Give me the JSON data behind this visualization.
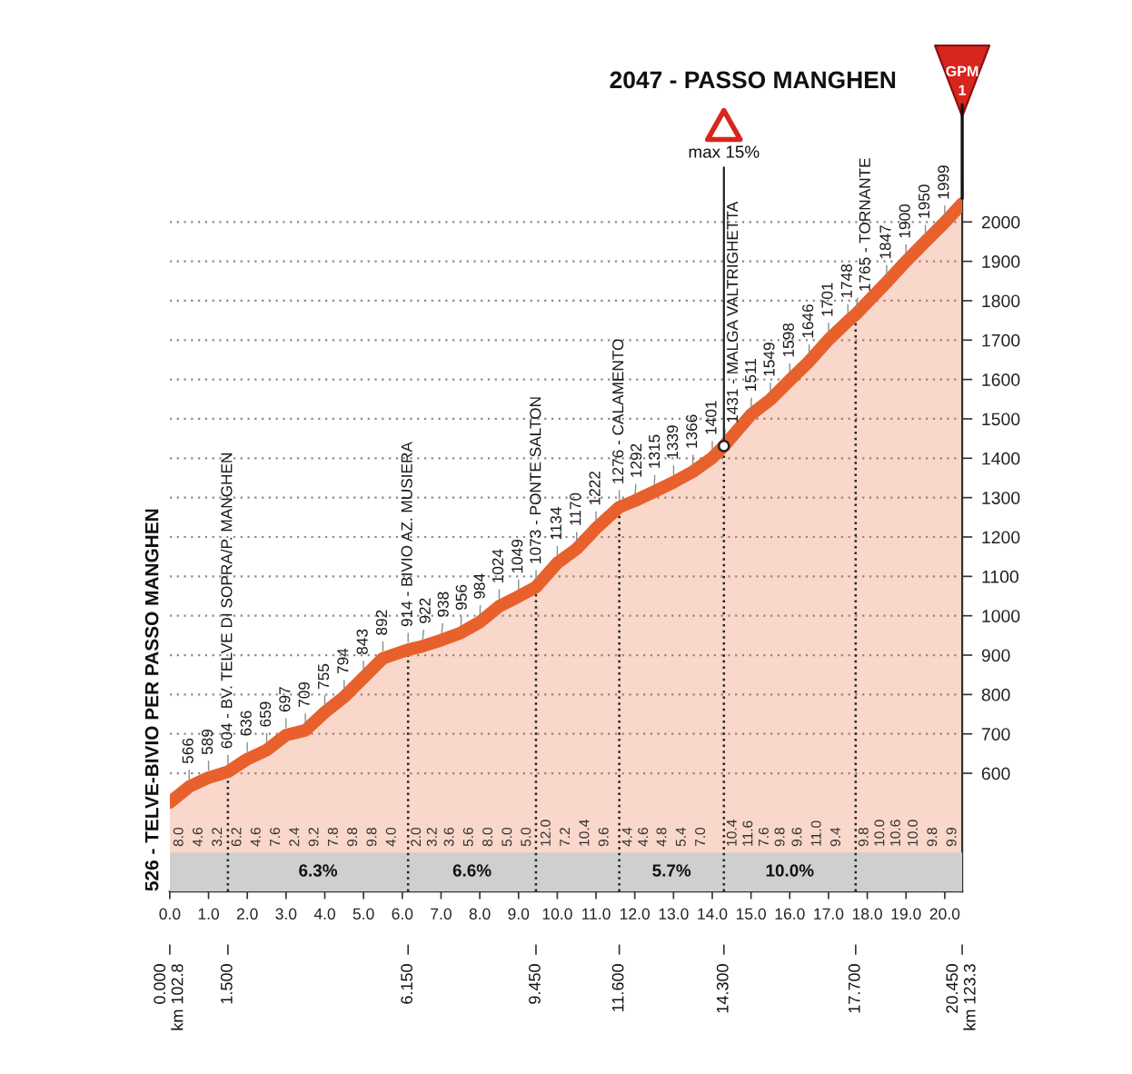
{
  "chart_data": {
    "type": "area",
    "title": "2047 - PASSO MANGHEN",
    "series": [
      {
        "color": "#e8602c",
        "x": [
          0,
          0.5,
          1.0,
          1.5,
          2.0,
          2.5,
          3.0,
          3.5,
          4.0,
          4.5,
          5.0,
          5.5,
          6.15,
          6.5,
          7.0,
          7.5,
          8.0,
          8.5,
          9.0,
          9.45,
          10.0,
          10.5,
          11.0,
          11.6,
          12.0,
          12.5,
          13.0,
          13.5,
          14.0,
          14.3,
          15.0,
          15.5,
          16.0,
          16.5,
          17.0,
          17.5,
          17.7,
          18.5,
          19.0,
          19.5,
          20.0,
          20.45
        ],
        "values": [
          526,
          566,
          589,
          604,
          636,
          659,
          697,
          709,
          755,
          794,
          843,
          892,
          914,
          922,
          938,
          956,
          984,
          1024,
          1049,
          1073,
          1134,
          1170,
          1222,
          1276,
          1292,
          1315,
          1339,
          1366,
          1401,
          1431,
          1511,
          1549,
          1598,
          1646,
          1701,
          1748,
          1765,
          1847,
          1900,
          1950,
          1999,
          2047
        ],
        "value_labels": [
          "526 - TELVE-BIVIO PER PASSO MANGHEN",
          "566",
          "589",
          "604 - BV. TELVE DI SOPRA/P. MANGHEN",
          "636",
          "659",
          "697",
          "709",
          "755",
          "794",
          "843",
          "892",
          "914 - BIVIO AZ. MUSIERA",
          "922",
          "938",
          "956",
          "984",
          "1024",
          "1049",
          "1073 - PONTE SALTON",
          "1134",
          "1170",
          "1222",
          "1276 - CALAMENTO",
          "1292",
          "1315",
          "1339",
          "1366",
          "1401",
          "1431 - MALGA VALTRIGHETTA",
          "1511",
          "1549",
          "1598",
          "1646",
          "1701",
          "1748",
          "1765 - TORNANTE",
          "1847",
          "1900",
          "1950",
          "1999",
          null
        ]
      }
    ],
    "xlim": [
      0,
      20.45
    ],
    "ylim": [
      300,
      2100
    ],
    "xticks": [
      {
        "value": 0,
        "label": "0.0"
      },
      {
        "value": 1,
        "label": "1.0"
      },
      {
        "value": 2,
        "label": "2.0"
      },
      {
        "value": 3,
        "label": "3.0"
      },
      {
        "value": 4,
        "label": "4.0"
      },
      {
        "value": 5,
        "label": "5.0"
      },
      {
        "value": 6,
        "label": "6.0"
      },
      {
        "value": 7,
        "label": "7.0"
      },
      {
        "value": 8,
        "label": "8.0"
      },
      {
        "value": 9,
        "label": "9.0"
      },
      {
        "value": 10,
        "label": "10.0"
      },
      {
        "value": 11,
        "label": "11.0"
      },
      {
        "value": 12,
        "label": "12.0"
      },
      {
        "value": 13,
        "label": "13.0"
      },
      {
        "value": 14,
        "label": "14.0"
      },
      {
        "value": 15,
        "label": "15.0"
      },
      {
        "value": 16,
        "label": "16.0"
      },
      {
        "value": 17,
        "label": "17.0"
      },
      {
        "value": 18,
        "label": "18.0"
      },
      {
        "value": 19,
        "label": "19.0"
      },
      {
        "value": 20,
        "label": "20.0"
      }
    ],
    "yticks": [
      600,
      700,
      800,
      900,
      1000,
      1100,
      1200,
      1300,
      1400,
      1500,
      1600,
      1700,
      1800,
      1900,
      2000
    ],
    "x2lim": [
      0,
      20.45
    ],
    "x2ticks": [
      {
        "value": 0,
        "label": "0.000\nkm 102.8"
      },
      {
        "value": 1.5,
        "label": "1.500"
      },
      {
        "value": 6.15,
        "label": "6.150"
      },
      {
        "value": 9.45,
        "label": "9.450"
      },
      {
        "value": 11.6,
        "label": "11.600"
      },
      {
        "value": 14.3,
        "label": "14.300"
      },
      {
        "value": 17.7,
        "label": "17.700"
      },
      {
        "value": 20.45,
        "label": "20.450\nkm 123.3"
      }
    ],
    "grid": "y",
    "bands": [
      {
        "axis": "x",
        "from": 0,
        "to": 6.15,
        "label": "6.3%",
        "color": "#cfcfcf"
      },
      {
        "axis": "x",
        "from": 6.15,
        "to": 11.6,
        "label": "6.6%",
        "color": "#cfcfcf"
      },
      {
        "axis": "x",
        "from": 11.6,
        "to": 14.3,
        "label": "5.7%",
        "color": "#cfcfcf"
      },
      {
        "axis": "x",
        "from": 14.3,
        "to": 20.45,
        "label": "10.0%",
        "color": "#cfcfcf"
      }
    ],
    "ref_lines": [
      {
        "axis": "x",
        "value": 1.5,
        "color": "#222222",
        "line_style": "dotted"
      },
      {
        "axis": "x",
        "value": 6.15,
        "color": "#222222",
        "line_style": "dotted"
      },
      {
        "axis": "x",
        "value": 9.45,
        "color": "#222222",
        "line_style": "dotted"
      },
      {
        "axis": "x",
        "value": 11.6,
        "color": "#222222",
        "line_style": "dotted"
      },
      {
        "axis": "x",
        "value": 14.3,
        "color": "#222222",
        "line_style": "dotted"
      },
      {
        "axis": "x",
        "value": 17.7,
        "color": "#222222",
        "line_style": "dotted"
      }
    ],
    "annotations": [
      {
        "text": "max 15%",
        "x": 14.3,
        "y": 1431
      },
      {
        "text": "GPM\n1",
        "x": 20.45,
        "y": 2047
      },
      "8.0",
      "4.6",
      "3.2",
      "6.2",
      "4.6",
      "7.6",
      "2.4",
      "9.2",
      "7.8",
      "9.8",
      "9.8",
      "4.0",
      "2.0",
      "3.2",
      "3.6",
      "5.6",
      "8.0",
      "5.0",
      "5.0",
      "12.0",
      "7.2",
      "10.4",
      "9.6",
      "4.4",
      "4.6",
      "4.8",
      "5.4",
      "7.0",
      "10.4",
      "11.6",
      "7.6",
      "9.8",
      "9.6",
      "11.0",
      "9.4",
      "9.8",
      "10.0",
      "10.6",
      "10.0",
      "9.8",
      "9.9"
    ]
  }
}
